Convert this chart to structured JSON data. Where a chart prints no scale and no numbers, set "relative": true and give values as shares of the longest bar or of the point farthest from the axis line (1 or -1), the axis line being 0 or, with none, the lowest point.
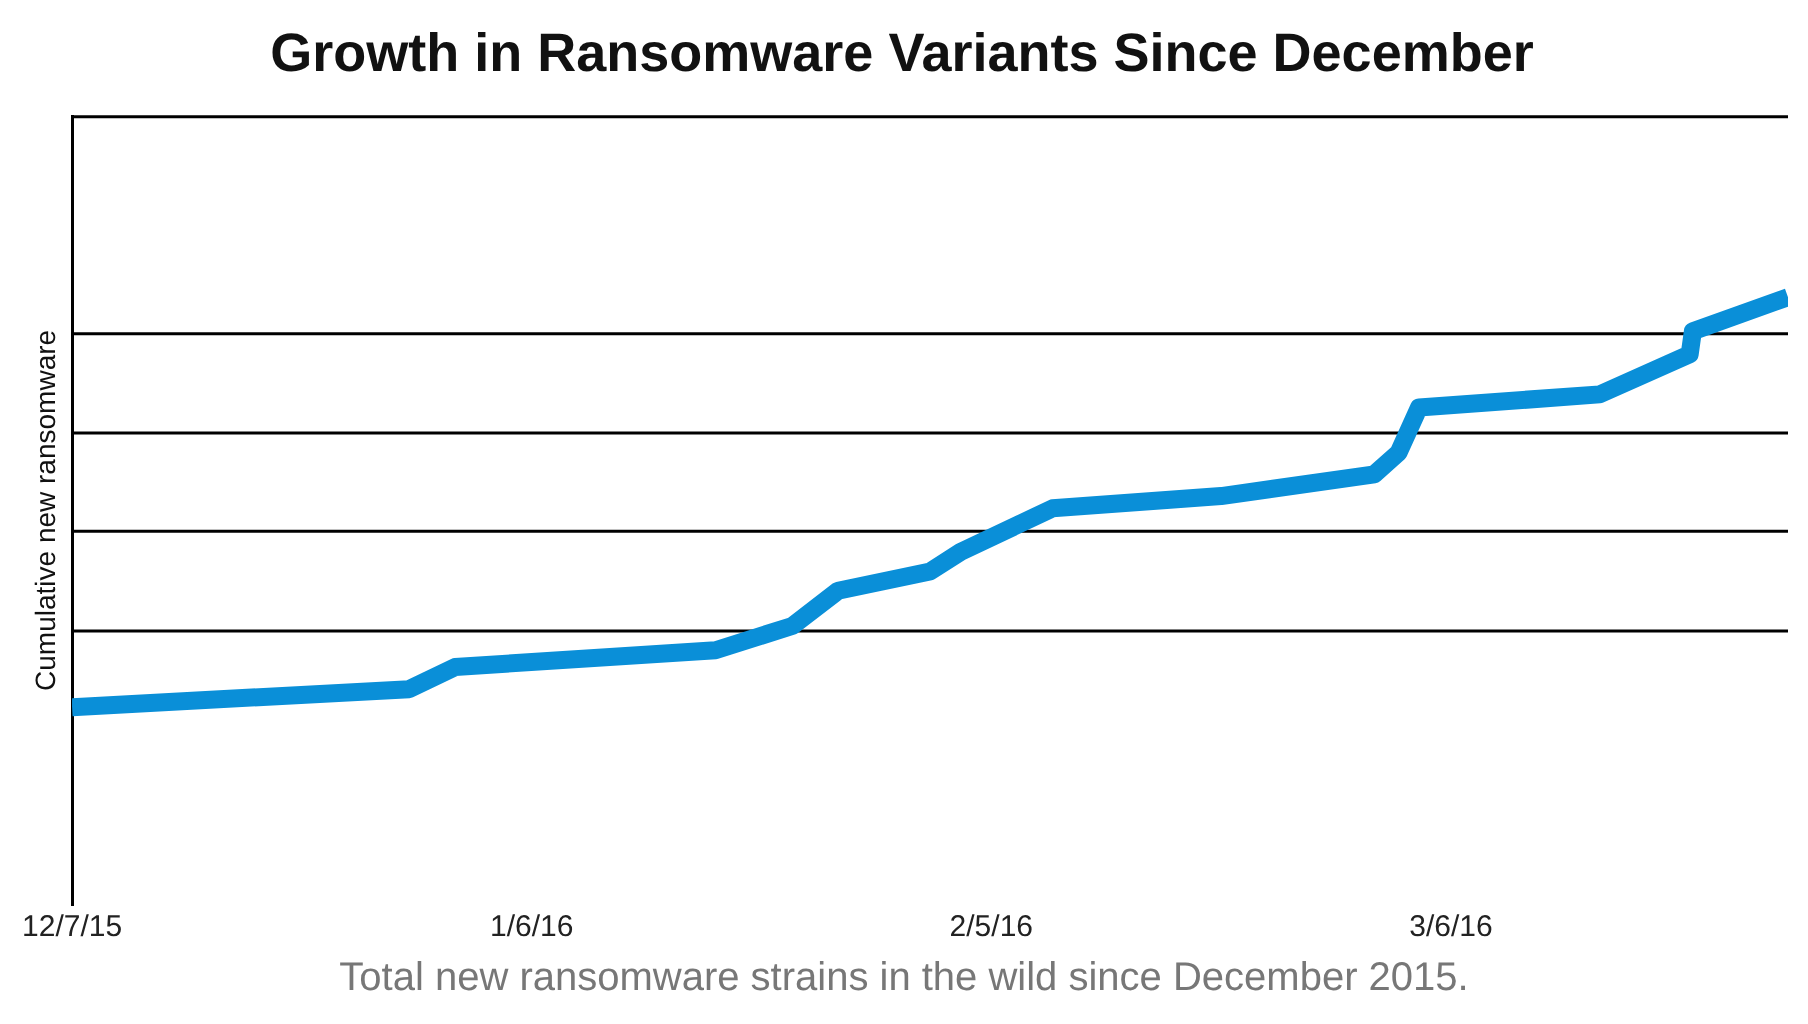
{
  "chart_data": {
    "type": "line",
    "title": "Growth in Ransomware Variants Since December",
    "ylabel": "Cumulative new ransomware",
    "annotations": [
      "Total new ransomware strains in the wild since December 2015."
    ],
    "x": [
      "2015-12-07",
      "2015-12-29",
      "2016-01-01",
      "2016-01-18",
      "2016-01-23",
      "2016-01-26",
      "2016-02-01",
      "2016-02-03",
      "2016-02-09",
      "2016-02-20",
      "2016-03-01",
      "2016-03-02T14:00",
      "2016-03-03T22:00",
      "2016-03-15T17:00",
      "2016-03-21T14:00",
      "2016-03-21T19:00",
      "2016-03-28"
    ],
    "series": [
      {
        "color": "#0a8fd8",
        "values": [
          0,
          0.044,
          0.098,
          0.139,
          0.198,
          0.284,
          0.331,
          0.379,
          0.485,
          0.515,
          0.568,
          0.621,
          0.731,
          0.763,
          0.861,
          0.917,
          1
        ]
      }
    ],
    "relative": true,
    "xlim": [
      "2015-12-07",
      "2016-03-28"
    ],
    "xticks": [
      {
        "value": "2015-12-07",
        "label": "12/7/15"
      },
      {
        "value": "2016-01-06",
        "label": "1/6/16"
      },
      {
        "value": "2016-02-05",
        "label": "2/5/16"
      },
      {
        "value": "2016-03-06",
        "label": "3/6/16"
      }
    ],
    "ref_lines": [
      {
        "axis": "y",
        "value": 0.186,
        "color": "#000000"
      },
      {
        "axis": "y",
        "value": 0.429,
        "color": "#000000"
      },
      {
        "axis": "y",
        "value": 0.669,
        "color": "#000000"
      },
      {
        "axis": "y",
        "value": 0.911,
        "color": "#000000"
      }
    ],
    "legend": false,
    "marker": "none",
    "line_style": "solid"
  }
}
